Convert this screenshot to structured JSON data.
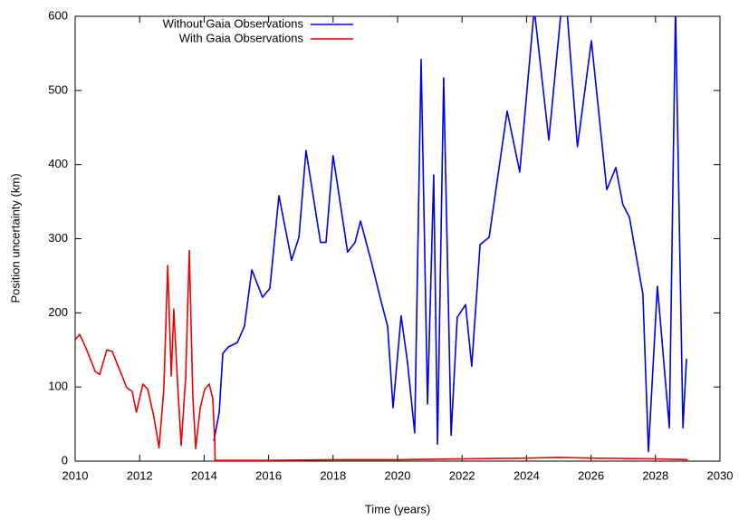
{
  "chart_data": {
    "type": "line",
    "xlabel": "Time (years)",
    "ylabel": "Position uncertainty (km)",
    "xlim": [
      2010,
      2030
    ],
    "ylim": [
      0,
      600
    ],
    "xticks": [
      2010,
      2012,
      2014,
      2016,
      2018,
      2020,
      2022,
      2024,
      2026,
      2028,
      2030
    ],
    "yticks": [
      0,
      100,
      200,
      300,
      400,
      500,
      600
    ],
    "legend": "top-left",
    "series": [
      {
        "name": "Without Gaia Observations",
        "color": "#0000ee",
        "x": [
          2014.3,
          2014.47,
          2014.58,
          2014.75,
          2015.03,
          2015.25,
          2015.48,
          2015.81,
          2016.04,
          2016.32,
          2016.71,
          2016.94,
          2017.16,
          2017.61,
          2017.78,
          2018.0,
          2018.45,
          2018.68,
          2018.85,
          2019.19,
          2019.47,
          2019.69,
          2019.86,
          2020.11,
          2020.31,
          2020.53,
          2020.73,
          2020.93,
          2021.12,
          2021.24,
          2021.43,
          2021.66,
          2021.85,
          2022.11,
          2022.3,
          2022.56,
          2022.84,
          2023.4,
          2023.79,
          2024.24,
          2024.69,
          2025.08,
          2025.25,
          2025.58,
          2026.01,
          2026.49,
          2026.77,
          2026.99,
          2027.19,
          2027.61,
          2027.78,
          2028.06,
          2028.43,
          2028.62,
          2028.85,
          2028.96
        ],
        "values": [
          27,
          66,
          145,
          154,
          160,
          182,
          258,
          221,
          233,
          358,
          271,
          302,
          419,
          295,
          295,
          412,
          282,
          295,
          324,
          268,
          219,
          182,
          72,
          196,
          133,
          38,
          542,
          77,
          386,
          23,
          517,
          35,
          194,
          211,
          128,
          292,
          302,
          472,
          390,
          610,
          433,
          610,
          610,
          424,
          567,
          366,
          396,
          346,
          329,
          225,
          13,
          236,
          45,
          610,
          45,
          138
        ]
      },
      {
        "name": "With Gaia Observations",
        "color": "#ee0000",
        "x": [
          2010,
          2010.14,
          2010.34,
          2010.62,
          2010.76,
          2010.98,
          2011.15,
          2011.4,
          2011.6,
          2011.77,
          2011.9,
          2012.1,
          2012.25,
          2012.44,
          2012.6,
          2012.75,
          2012.87,
          2012.98,
          2013.06,
          2013.17,
          2013.29,
          2013.43,
          2013.54,
          2013.65,
          2013.74,
          2013.88,
          2014.02,
          2014.16,
          2014.27,
          2014.33,
          2014.34,
          2016,
          2018,
          2020,
          2022,
          2024,
          2025,
          2026,
          2028,
          2029
        ],
        "values": [
          164,
          171,
          152,
          121,
          117,
          150,
          148,
          121,
          99,
          94,
          66,
          104,
          97,
          60,
          18,
          97,
          264,
          115,
          205,
          109,
          21,
          115,
          284,
          88,
          17,
          72,
          97,
          104,
          84,
          27,
          1,
          1,
          2,
          2,
          3,
          4,
          5,
          4,
          3,
          2
        ]
      }
    ]
  }
}
